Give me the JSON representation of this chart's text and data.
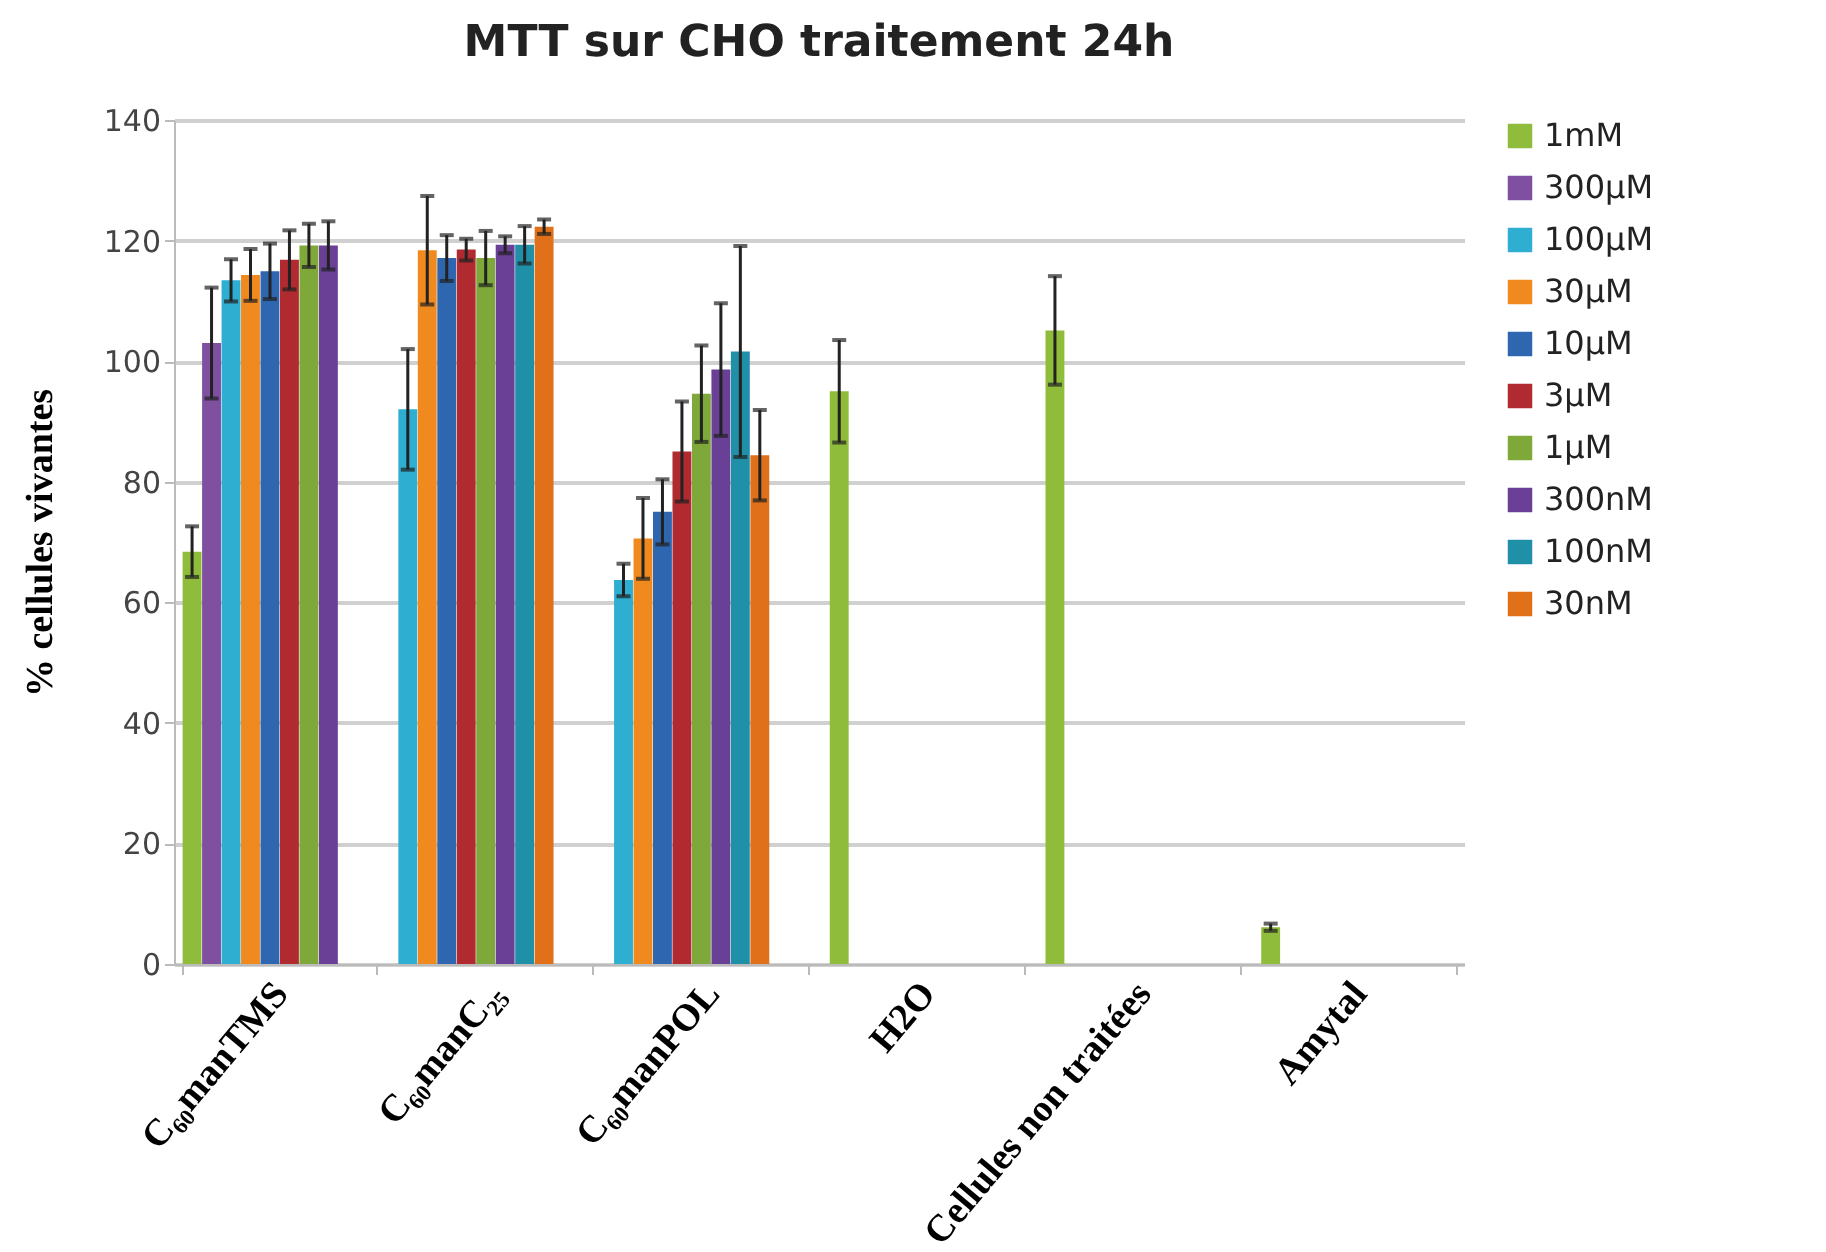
{
  "chart_data": {
    "type": "bar",
    "title": "MTT sur CHO traitement 24h",
    "ylabel": "% cellules vivantes",
    "categories": [
      "C₆₀manTMS",
      "C₆₀manC₂₅",
      "C₆₀manPOL",
      "H2O",
      "Cellules non traitées",
      "Amytal"
    ],
    "series": [
      {
        "name": "1mM",
        "color": "#8fbc3a",
        "values": [
          68.4,
          null,
          null,
          95,
          105.1,
          6.1
        ],
        "errors": [
          4.2,
          null,
          null,
          8.5,
          9,
          0.6
        ]
      },
      {
        "name": "300µM",
        "color": "#7f4fa0",
        "values": [
          103,
          null,
          null,
          null,
          null,
          null
        ],
        "errors": [
          9.2,
          null,
          null,
          null,
          null,
          null
        ]
      },
      {
        "name": "100µM",
        "color": "#2eaed0",
        "values": [
          113.4,
          92,
          63.7,
          null,
          null,
          null
        ],
        "errors": [
          3.5,
          10,
          2.7,
          null,
          null,
          null
        ]
      },
      {
        "name": "30µM",
        "color": "#f08a1e",
        "values": [
          114.3,
          118.4,
          70.6,
          null,
          null,
          null
        ],
        "errors": [
          4.3,
          9,
          6.7,
          null,
          null,
          null
        ]
      },
      {
        "name": "10µM",
        "color": "#2e67b0",
        "values": [
          114.9,
          117.1,
          75,
          null,
          null,
          null
        ],
        "errors": [
          4.6,
          3.8,
          5.4,
          null,
          null,
          null
        ]
      },
      {
        "name": "3µM",
        "color": "#b02a30",
        "values": [
          116.8,
          118.5,
          85,
          null,
          null,
          null
        ],
        "errors": [
          4.9,
          1.8,
          8.3,
          null,
          null,
          null
        ]
      },
      {
        "name": "1µM",
        "color": "#7ea83a",
        "values": [
          119.2,
          117.1,
          94.6,
          null,
          null,
          null
        ],
        "errors": [
          3.6,
          4.5,
          8,
          null,
          null,
          null
        ]
      },
      {
        "name": "300nM",
        "color": "#6a3f96",
        "values": [
          119.2,
          119.3,
          98.6,
          null,
          null,
          null
        ],
        "errors": [
          4,
          1.4,
          11,
          null,
          null,
          null
        ]
      },
      {
        "name": "100nM",
        "color": "#208fa8",
        "values": [
          null,
          119.3,
          101.6,
          null,
          null,
          null
        ],
        "errors": [
          null,
          3.1,
          17.5,
          null,
          null,
          null
        ]
      },
      {
        "name": "30nM",
        "color": "#e0701a",
        "values": [
          null,
          122.3,
          84.4,
          null,
          null,
          null
        ],
        "errors": [
          null,
          1.2,
          7.5,
          null,
          null,
          null
        ]
      }
    ],
    "ylim": [
      0,
      140
    ],
    "yticks": [
      0,
      20,
      40,
      60,
      80,
      100,
      120,
      140
    ],
    "grid": "y",
    "legend": "right"
  }
}
